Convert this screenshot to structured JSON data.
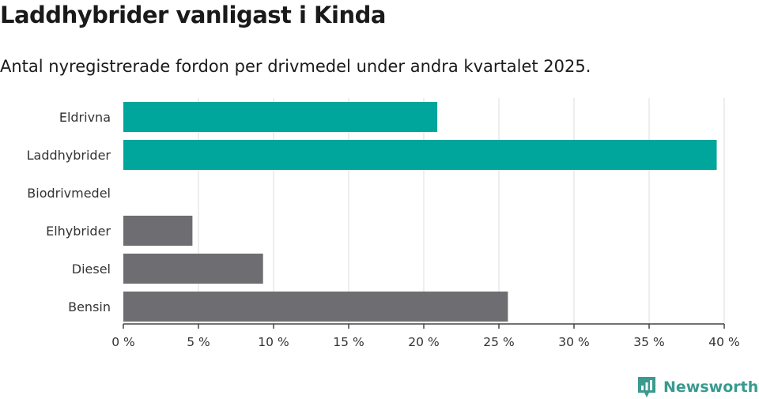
{
  "title": "Laddhybrider vanligast i Kinda",
  "subtitle": "Antal nyregistrerade fordon per drivmedel under andra kvartalet 2025.",
  "brand": {
    "name": "Newsworthy",
    "icon": "newsworthy-logo-icon",
    "color": "#3a9a8f"
  },
  "colors": {
    "highlight": "#00a59b",
    "default": "#6d6d72",
    "grid": "#dddddd",
    "axis": "#444444"
  },
  "chart_data": {
    "type": "bar",
    "orientation": "horizontal",
    "categories": [
      "Eldrivna",
      "Laddhybrider",
      "Biodrivmedel",
      "Elhybrider",
      "Diesel",
      "Bensin"
    ],
    "values": [
      20.9,
      39.5,
      0,
      4.6,
      9.3,
      25.6
    ],
    "highlighted": [
      true,
      true,
      false,
      false,
      false,
      false
    ],
    "xlim": [
      0,
      40
    ],
    "xticks": [
      0,
      5,
      10,
      15,
      20,
      25,
      30,
      35,
      40
    ],
    "tick_labels": [
      "0 %",
      "5 %",
      "10 %",
      "15 %",
      "20 %",
      "25 %",
      "30 %",
      "35 %",
      "40 %"
    ],
    "grid": "vertical",
    "legend": "none"
  }
}
